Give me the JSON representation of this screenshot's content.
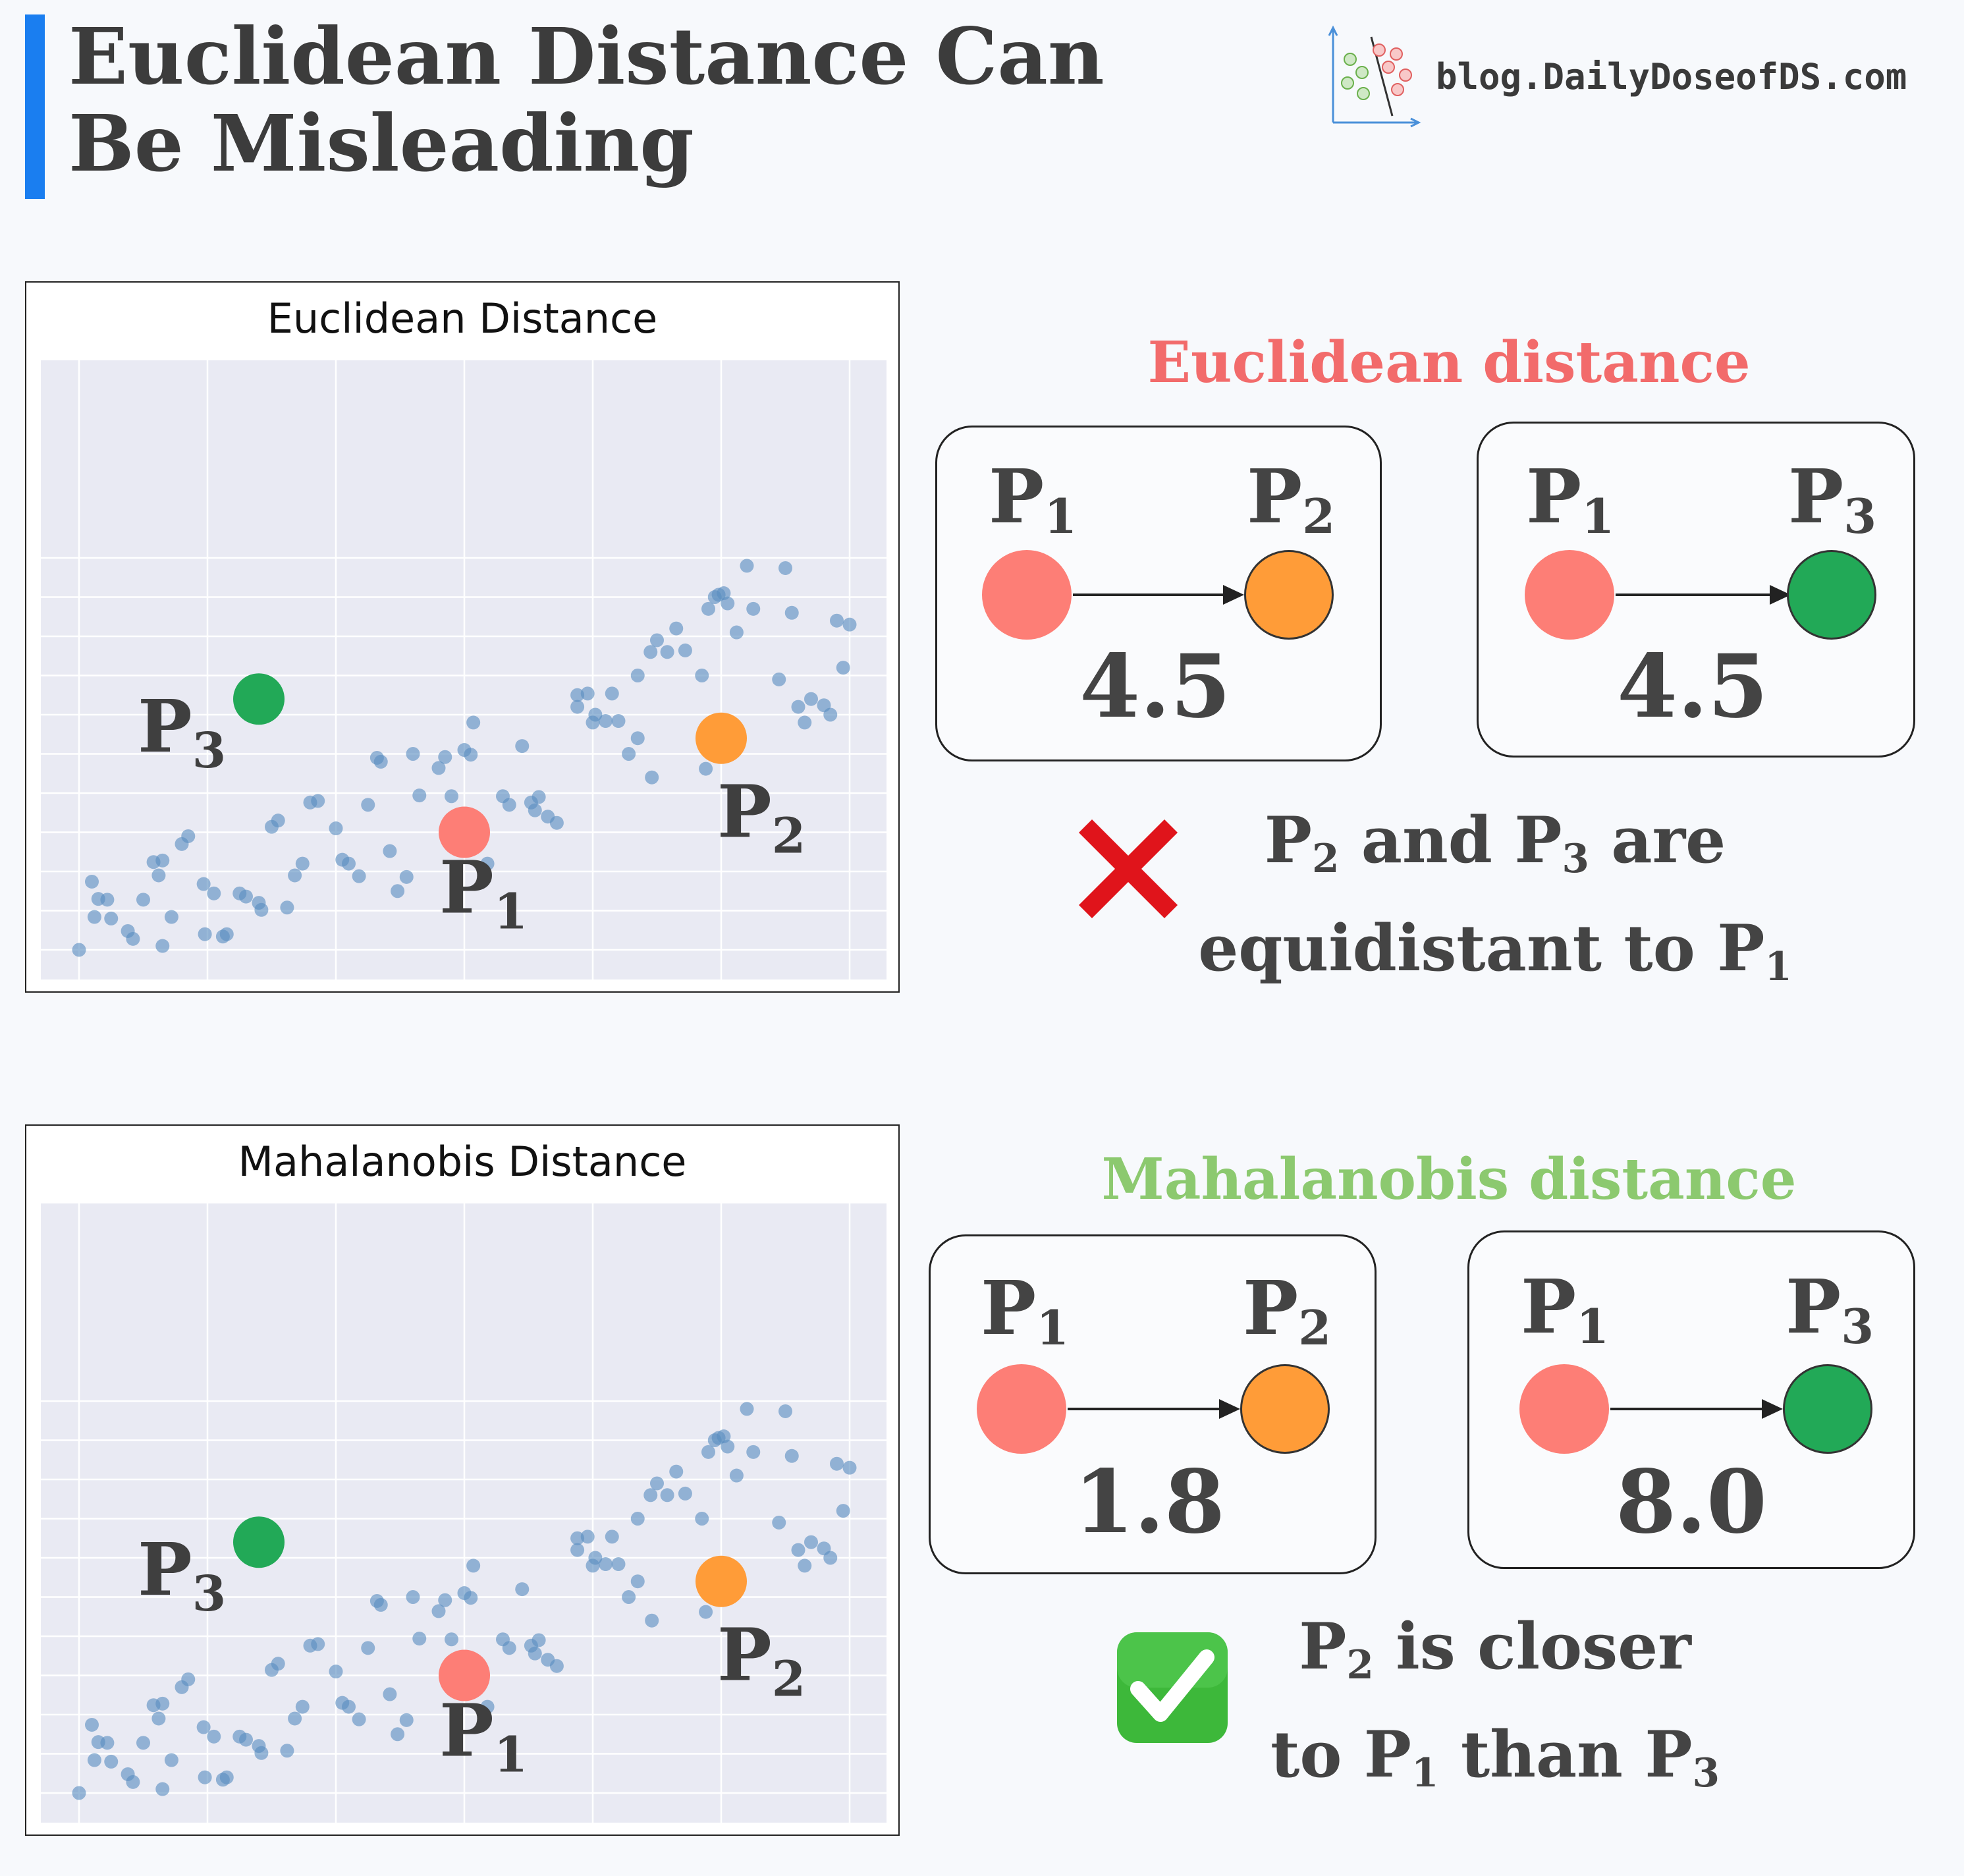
{
  "header": {
    "title_line1": "Euclidean Distance Can",
    "title_line2": "Be Misleading",
    "brand": "blog.DailyDoseofDS.com"
  },
  "plots": [
    {
      "title": "Euclidean Distance",
      "points": {
        "P1": {
          "x": 0,
          "y": 0
        },
        "P2": {
          "x": 2,
          "y": 1.2
        },
        "P3": {
          "x": -1.6,
          "y": 1.7
        }
      }
    },
    {
      "title": "Mahalanobis Distance",
      "points": {
        "P1": {
          "x": 0,
          "y": 0
        },
        "P2": {
          "x": 2,
          "y": 1.2
        },
        "P3": {
          "x": -1.6,
          "y": 1.7
        }
      }
    }
  ],
  "scatter": [
    [
      -3.0,
      -1.5
    ],
    [
      -2.9,
      -0.63
    ],
    [
      -2.88,
      -1.08
    ],
    [
      -2.85,
      -0.85
    ],
    [
      -2.78,
      -0.86
    ],
    [
      -2.75,
      -1.1
    ],
    [
      -2.62,
      -1.26
    ],
    [
      -2.58,
      -1.36
    ],
    [
      -2.5,
      -0.86
    ],
    [
      -2.35,
      -1.45
    ],
    [
      -2.42,
      -0.38
    ],
    [
      -2.38,
      -0.55
    ],
    [
      -2.35,
      -0.36
    ],
    [
      -2.28,
      -1.08
    ],
    [
      -2.2,
      -0.15
    ],
    [
      -2.15,
      -0.05
    ],
    [
      -2.03,
      -0.66
    ],
    [
      -2.02,
      -1.3
    ],
    [
      -1.95,
      -0.78
    ],
    [
      -1.88,
      -1.33
    ],
    [
      -1.85,
      -1.3
    ],
    [
      -1.75,
      -0.78
    ],
    [
      -1.7,
      -0.82
    ],
    [
      -1.6,
      -0.9
    ],
    [
      -1.58,
      -0.99
    ],
    [
      -1.5,
      0.07
    ],
    [
      -1.45,
      0.15
    ],
    [
      -1.38,
      -0.96
    ],
    [
      -1.32,
      -0.55
    ],
    [
      -1.26,
      -0.4
    ],
    [
      -1.2,
      0.38
    ],
    [
      -1.14,
      0.4
    ],
    [
      -1.0,
      0.05
    ],
    [
      -0.95,
      -0.35
    ],
    [
      -0.9,
      -0.4
    ],
    [
      -0.82,
      -0.56
    ],
    [
      -0.75,
      0.35
    ],
    [
      -0.68,
      0.95
    ],
    [
      -0.65,
      0.9
    ],
    [
      -0.58,
      -0.24
    ],
    [
      -0.52,
      -0.75
    ],
    [
      -0.45,
      -0.57
    ],
    [
      -0.4,
      1.0
    ],
    [
      -0.35,
      0.47
    ],
    [
      -0.2,
      0.82
    ],
    [
      -0.15,
      0.96
    ],
    [
      -0.1,
      0.46
    ],
    [
      0.0,
      1.05
    ],
    [
      0.05,
      0.99
    ],
    [
      0.07,
      1.4
    ],
    [
      0.05,
      -0.21
    ],
    [
      0.18,
      -0.4
    ],
    [
      0.3,
      0.46
    ],
    [
      0.35,
      0.35
    ],
    [
      0.45,
      1.1
    ],
    [
      0.52,
      0.38
    ],
    [
      0.55,
      0.28
    ],
    [
      0.58,
      0.45
    ],
    [
      0.65,
      0.2
    ],
    [
      0.72,
      0.12
    ],
    [
      0.88,
      1.75
    ],
    [
      0.88,
      1.6
    ],
    [
      0.96,
      1.77
    ],
    [
      1.0,
      1.4
    ],
    [
      1.02,
      1.5
    ],
    [
      1.1,
      1.42
    ],
    [
      1.15,
      1.77
    ],
    [
      1.2,
      1.42
    ],
    [
      1.28,
      1.0
    ],
    [
      1.35,
      1.2
    ],
    [
      1.46,
      0.7
    ],
    [
      1.35,
      2.0
    ],
    [
      1.45,
      2.3
    ],
    [
      1.5,
      2.45
    ],
    [
      1.58,
      2.3
    ],
    [
      1.65,
      2.6
    ],
    [
      1.72,
      2.32
    ],
    [
      1.85,
      2.0
    ],
    [
      1.88,
      0.81
    ],
    [
      1.9,
      2.85
    ],
    [
      1.95,
      3.0
    ],
    [
      1.98,
      3.03
    ],
    [
      2.02,
      3.05
    ],
    [
      2.05,
      2.92
    ],
    [
      2.12,
      2.55
    ],
    [
      2.2,
      3.4
    ],
    [
      2.25,
      2.85
    ],
    [
      2.45,
      1.95
    ],
    [
      2.5,
      3.37
    ],
    [
      2.55,
      2.8
    ],
    [
      2.6,
      1.6
    ],
    [
      2.65,
      1.4
    ],
    [
      2.7,
      1.7
    ],
    [
      2.8,
      1.62
    ],
    [
      2.85,
      1.5
    ],
    [
      2.9,
      2.7
    ],
    [
      2.95,
      2.1
    ],
    [
      3.0,
      2.65
    ]
  ],
  "euclidean_panel": {
    "heading": "Euclidean distance",
    "cards": [
      {
        "from": "P",
        "from_sub": "1",
        "to": "P",
        "to_sub": "2",
        "to_color": "orange",
        "value": "4.5"
      },
      {
        "from": "P",
        "from_sub": "1",
        "to": "P",
        "to_sub": "3",
        "to_color": "green",
        "value": "4.5"
      }
    ],
    "verdict": {
      "icon": "cross-mark-icon",
      "part1": "P",
      "sub1": "2",
      "part2": " and P",
      "sub2": "3",
      "part3": " are",
      "line2_a": "equidistant to P",
      "line2_sub": "1"
    }
  },
  "mahalanobis_panel": {
    "heading": "Mahalanobis distance",
    "cards": [
      {
        "from": "P",
        "from_sub": "1",
        "to": "P",
        "to_sub": "2",
        "to_color": "orange",
        "value": "1.8"
      },
      {
        "from": "P",
        "from_sub": "1",
        "to": "P",
        "to_sub": "3",
        "to_color": "green",
        "value": "8.0"
      }
    ],
    "verdict": {
      "icon": "check-mark-icon",
      "part1": "P",
      "sub1": "2",
      "part2": " is closer",
      "line2_a": "to P",
      "line2_sub": "1",
      "line2_b": " than P",
      "line2_sub2": "3"
    }
  },
  "colors": {
    "accent": "#1a7ef0",
    "p1": "#fd7e76",
    "p2": "#ff9c38",
    "p3": "#22a957",
    "scatter": "#5a8ec0",
    "plot_bg": "#e9eaf3",
    "euclid_heading": "#f26b6b",
    "mahal_heading": "#8cc96f"
  }
}
